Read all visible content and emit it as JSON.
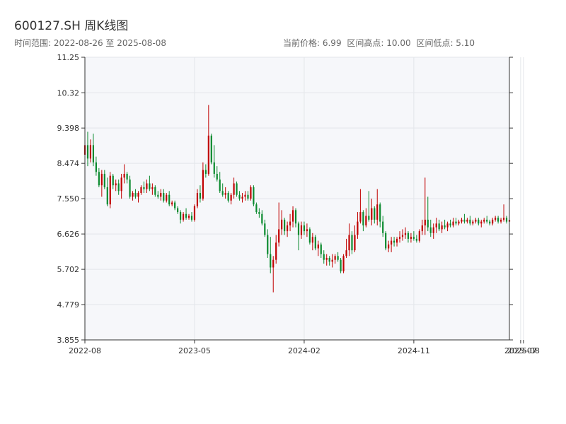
{
  "title": "600127.SH 周K线图",
  "time_range_label": "时间范围: 2022-08-26 至 2025-08-08",
  "stats": {
    "current_price": "当前价格: 6.99",
    "range_high": "区间高点: 10.00",
    "range_low": "区间低点: 5.10"
  },
  "colors": {
    "up": "#c00000",
    "down": "#0a8a2e",
    "plot_bg": "#f6f7fa",
    "grid": "#e3e6ea",
    "axis": "#333333"
  },
  "chart_data": {
    "type": "candlestick",
    "title": "600127.SH 周K线图",
    "ylim": [
      3.855,
      11.25
    ],
    "y_ticks": [
      "3.855",
      "4.779",
      "5.702",
      "6.626",
      "7.550",
      "8.474",
      "9.398",
      "10.32",
      "11.25"
    ],
    "x_tick_labels": [
      "2022-08",
      "2023-05",
      "2024-02",
      "2024-11",
      "2025-07",
      "2025-08"
    ],
    "x_tick_index": [
      0,
      39,
      78,
      117,
      155,
      156
    ],
    "grid": true,
    "series": [
      {
        "name": "600127.SH",
        "x": [
          "2022-08-26",
          "2022-09-02",
          "2022-09-09",
          "2022-09-16",
          "2022-09-23",
          "2022-09-30",
          "2022-10-07",
          "2022-10-14",
          "2022-10-21",
          "2022-10-28",
          "2022-11-04",
          "2022-11-11",
          "2022-11-18",
          "2022-11-25",
          "2022-12-02",
          "2022-12-09",
          "2022-12-16",
          "2022-12-23",
          "2022-12-30",
          "2023-01-06",
          "2023-01-13",
          "2023-01-20",
          "2023-01-27",
          "2023-02-03",
          "2023-02-10",
          "2023-02-17",
          "2023-02-24",
          "2023-03-03",
          "2023-03-10",
          "2023-03-17",
          "2023-03-24",
          "2023-03-31",
          "2023-04-07",
          "2023-04-14",
          "2023-04-21",
          "2023-04-28",
          "2023-05-05",
          "2023-05-12",
          "2023-05-19",
          "2023-05-26",
          "2023-06-02",
          "2023-06-09",
          "2023-06-16",
          "2023-06-23",
          "2023-06-30",
          "2023-07-07",
          "2023-07-14",
          "2023-07-21",
          "2023-07-28",
          "2023-08-04",
          "2023-08-11",
          "2023-08-18",
          "2023-08-25",
          "2023-09-01",
          "2023-09-08",
          "2023-09-15",
          "2023-09-22",
          "2023-09-29",
          "2023-10-06",
          "2023-10-13",
          "2023-10-20",
          "2023-10-27",
          "2023-11-03",
          "2023-11-10",
          "2023-11-17",
          "2023-11-24",
          "2023-12-01",
          "2023-12-08",
          "2023-12-15",
          "2023-12-22",
          "2023-12-29",
          "2024-01-05",
          "2024-01-12",
          "2024-01-19",
          "2024-01-26",
          "2024-02-02",
          "2024-02-09",
          "2024-02-16",
          "2024-02-23",
          "2024-03-01",
          "2024-03-08",
          "2024-03-15",
          "2024-03-22",
          "2024-03-29",
          "2024-04-05",
          "2024-04-12",
          "2024-04-19",
          "2024-04-26",
          "2024-05-03",
          "2024-05-10",
          "2024-05-17",
          "2024-05-24",
          "2024-05-31",
          "2024-06-07",
          "2024-06-14",
          "2024-06-21",
          "2024-06-28",
          "2024-07-05",
          "2024-07-12",
          "2024-07-19",
          "2024-07-26",
          "2024-08-02",
          "2024-08-09",
          "2024-08-16",
          "2024-08-23",
          "2024-08-30",
          "2024-09-06",
          "2024-09-13",
          "2024-09-20",
          "2024-09-27",
          "2024-10-04",
          "2024-10-11",
          "2024-10-18",
          "2024-10-25",
          "2024-11-01",
          "2024-11-08",
          "2024-11-15",
          "2024-11-22",
          "2024-11-29",
          "2024-12-06",
          "2024-12-13",
          "2024-12-20",
          "2024-12-27",
          "2025-01-03",
          "2025-01-10",
          "2025-01-17",
          "2025-01-24",
          "2025-01-31",
          "2025-02-07",
          "2025-02-14",
          "2025-02-21",
          "2025-02-28",
          "2025-03-07",
          "2025-03-14",
          "2025-03-21",
          "2025-03-28",
          "2025-04-04",
          "2025-04-11",
          "2025-04-18",
          "2025-04-25",
          "2025-05-02",
          "2025-05-09",
          "2025-05-16",
          "2025-05-23",
          "2025-05-30",
          "2025-06-06",
          "2025-06-13",
          "2025-06-20",
          "2025-06-27",
          "2025-07-04",
          "2025-07-11",
          "2025-07-18",
          "2025-07-25",
          "2025-08-01",
          "2025-08-08"
        ],
        "ohlc": [
          [
            8.7,
            9.05,
            8.6,
            8.95
          ],
          [
            8.95,
            9.3,
            8.4,
            8.6
          ],
          [
            8.6,
            9.1,
            8.5,
            8.95
          ],
          [
            8.95,
            9.25,
            8.4,
            8.5
          ],
          [
            8.5,
            8.65,
            8.15,
            8.25
          ],
          [
            8.25,
            8.35,
            7.85,
            7.9
          ],
          [
            7.9,
            8.3,
            7.6,
            8.2
          ],
          [
            8.2,
            8.3,
            7.8,
            7.85
          ],
          [
            7.85,
            8.1,
            7.35,
            7.4
          ],
          [
            7.4,
            8.25,
            7.3,
            8.15
          ],
          [
            8.15,
            8.2,
            7.8,
            7.9
          ],
          [
            7.9,
            8.05,
            7.75,
            7.95
          ],
          [
            7.95,
            8.05,
            7.65,
            7.75
          ],
          [
            7.75,
            8.2,
            7.55,
            8.1
          ],
          [
            8.1,
            8.45,
            7.95,
            8.2
          ],
          [
            8.2,
            8.25,
            7.95,
            8.05
          ],
          [
            8.05,
            8.15,
            7.55,
            7.6
          ],
          [
            7.6,
            7.75,
            7.5,
            7.7
          ],
          [
            7.7,
            7.8,
            7.55,
            7.6
          ],
          [
            7.6,
            7.75,
            7.45,
            7.7
          ],
          [
            7.7,
            7.9,
            7.65,
            7.85
          ],
          [
            7.85,
            8.0,
            7.7,
            7.8
          ],
          [
            7.8,
            8.05,
            7.7,
            7.95
          ],
          [
            7.95,
            8.15,
            7.75,
            7.8
          ],
          [
            7.8,
            7.95,
            7.65,
            7.85
          ],
          [
            7.85,
            7.9,
            7.6,
            7.65
          ],
          [
            7.65,
            7.75,
            7.55,
            7.6
          ],
          [
            7.6,
            7.8,
            7.5,
            7.7
          ],
          [
            7.7,
            7.8,
            7.45,
            7.5
          ],
          [
            7.5,
            7.7,
            7.45,
            7.65
          ],
          [
            7.65,
            7.75,
            7.35,
            7.4
          ],
          [
            7.4,
            7.5,
            7.35,
            7.45
          ],
          [
            7.45,
            7.5,
            7.25,
            7.3
          ],
          [
            7.3,
            7.35,
            7.15,
            7.2
          ],
          [
            7.2,
            7.25,
            6.9,
            7.0
          ],
          [
            7.0,
            7.2,
            6.95,
            7.15
          ],
          [
            7.15,
            7.3,
            7.0,
            7.05
          ],
          [
            7.05,
            7.15,
            7.0,
            7.1
          ],
          [
            7.1,
            7.2,
            6.95,
            7.0
          ],
          [
            7.0,
            7.4,
            6.95,
            7.35
          ],
          [
            7.35,
            7.8,
            7.3,
            7.7
          ],
          [
            7.7,
            7.9,
            7.45,
            7.55
          ],
          [
            7.55,
            8.5,
            7.5,
            8.3
          ],
          [
            8.3,
            8.45,
            8.1,
            8.2
          ],
          [
            8.2,
            10.0,
            8.15,
            9.2
          ],
          [
            9.2,
            9.25,
            8.45,
            8.5
          ],
          [
            8.5,
            8.95,
            8.1,
            8.2
          ],
          [
            8.2,
            8.4,
            8.0,
            8.05
          ],
          [
            8.05,
            8.25,
            7.7,
            7.75
          ],
          [
            7.75,
            7.95,
            7.6,
            7.65
          ],
          [
            7.65,
            7.85,
            7.55,
            7.7
          ],
          [
            7.7,
            7.75,
            7.45,
            7.5
          ],
          [
            7.5,
            7.7,
            7.4,
            7.65
          ],
          [
            7.65,
            8.1,
            7.55,
            7.95
          ],
          [
            7.95,
            8.0,
            7.6,
            7.65
          ],
          [
            7.65,
            7.75,
            7.5,
            7.55
          ],
          [
            7.55,
            7.7,
            7.45,
            7.6
          ],
          [
            7.6,
            7.75,
            7.5,
            7.65
          ],
          [
            7.65,
            7.75,
            7.5,
            7.55
          ],
          [
            7.55,
            7.9,
            7.5,
            7.85
          ],
          [
            7.85,
            7.9,
            7.35,
            7.4
          ],
          [
            7.4,
            7.45,
            7.15,
            7.2
          ],
          [
            7.2,
            7.3,
            7.05,
            7.15
          ],
          [
            7.15,
            7.25,
            6.85,
            6.9
          ],
          [
            6.9,
            7.0,
            6.55,
            6.6
          ],
          [
            6.6,
            6.75,
            6.0,
            6.1
          ],
          [
            6.1,
            6.55,
            5.6,
            5.75
          ],
          [
            5.75,
            6.05,
            5.1,
            5.95
          ],
          [
            5.95,
            6.6,
            5.85,
            6.4
          ],
          [
            6.4,
            7.45,
            6.3,
            6.75
          ],
          [
            6.75,
            7.25,
            6.6,
            7.0
          ],
          [
            7.0,
            7.05,
            6.6,
            6.7
          ],
          [
            6.7,
            6.95,
            6.55,
            6.85
          ],
          [
            6.85,
            7.15,
            6.7,
            6.95
          ],
          [
            6.95,
            7.35,
            6.8,
            7.25
          ],
          [
            7.25,
            7.3,
            6.8,
            6.9
          ],
          [
            6.9,
            6.95,
            6.2,
            6.6
          ],
          [
            6.6,
            6.95,
            6.5,
            6.85
          ],
          [
            6.85,
            6.95,
            6.6,
            6.7
          ],
          [
            6.7,
            6.9,
            6.55,
            6.75
          ],
          [
            6.75,
            6.8,
            6.35,
            6.4
          ],
          [
            6.4,
            6.65,
            6.2,
            6.55
          ],
          [
            6.55,
            6.6,
            6.2,
            6.25
          ],
          [
            6.25,
            6.45,
            6.05,
            6.35
          ],
          [
            6.35,
            6.4,
            6.0,
            6.1
          ],
          [
            6.1,
            6.2,
            5.85,
            5.95
          ],
          [
            5.95,
            6.1,
            5.8,
            6.0
          ],
          [
            6.0,
            6.05,
            5.8,
            5.9
          ],
          [
            5.9,
            6.1,
            5.75,
            5.95
          ],
          [
            5.95,
            6.1,
            5.85,
            6.05
          ],
          [
            6.05,
            6.15,
            5.9,
            5.95
          ],
          [
            5.95,
            6.0,
            5.6,
            5.65
          ],
          [
            5.65,
            6.1,
            5.6,
            6.05
          ],
          [
            6.05,
            6.5,
            6.0,
            6.2
          ],
          [
            6.2,
            6.9,
            6.05,
            6.6
          ],
          [
            6.6,
            6.7,
            6.1,
            6.2
          ],
          [
            6.2,
            6.85,
            6.15,
            6.6
          ],
          [
            6.6,
            7.2,
            6.5,
            6.95
          ],
          [
            6.95,
            7.8,
            6.9,
            7.2
          ],
          [
            7.2,
            7.25,
            6.7,
            6.85
          ],
          [
            6.85,
            7.3,
            6.8,
            7.1
          ],
          [
            7.1,
            7.75,
            6.95,
            7.0
          ],
          [
            7.0,
            7.55,
            6.85,
            7.3
          ],
          [
            7.3,
            7.35,
            6.9,
            7.0
          ],
          [
            7.0,
            7.8,
            6.85,
            7.4
          ],
          [
            7.4,
            7.45,
            6.8,
            6.95
          ],
          [
            6.95,
            7.1,
            6.55,
            6.65
          ],
          [
            6.65,
            6.7,
            6.2,
            6.25
          ],
          [
            6.25,
            6.45,
            6.15,
            6.35
          ],
          [
            6.35,
            6.55,
            6.15,
            6.45
          ],
          [
            6.45,
            6.55,
            6.3,
            6.4
          ],
          [
            6.4,
            6.55,
            6.3,
            6.5
          ],
          [
            6.5,
            6.7,
            6.4,
            6.55
          ],
          [
            6.55,
            6.75,
            6.45,
            6.6
          ],
          [
            6.6,
            6.8,
            6.5,
            6.65
          ],
          [
            6.65,
            6.7,
            6.4,
            6.5
          ],
          [
            6.5,
            6.65,
            6.4,
            6.55
          ],
          [
            6.55,
            6.7,
            6.45,
            6.5
          ],
          [
            6.5,
            6.6,
            6.4,
            6.45
          ],
          [
            6.45,
            6.75,
            6.4,
            6.7
          ],
          [
            6.7,
            7.0,
            6.6,
            6.85
          ],
          [
            6.85,
            8.1,
            6.6,
            7.0
          ],
          [
            7.0,
            7.6,
            6.7,
            6.8
          ],
          [
            6.8,
            7.0,
            6.55,
            6.65
          ],
          [
            6.65,
            6.9,
            6.5,
            6.8
          ],
          [
            6.8,
            7.05,
            6.65,
            6.9
          ],
          [
            6.9,
            7.0,
            6.7,
            6.75
          ],
          [
            6.75,
            6.95,
            6.65,
            6.85
          ],
          [
            6.85,
            7.0,
            6.75,
            6.8
          ],
          [
            6.8,
            6.95,
            6.7,
            6.9
          ],
          [
            6.9,
            7.0,
            6.8,
            6.85
          ],
          [
            6.85,
            7.05,
            6.8,
            6.95
          ],
          [
            6.95,
            7.05,
            6.85,
            6.9
          ],
          [
            6.9,
            7.0,
            6.85,
            6.95
          ],
          [
            6.95,
            7.05,
            6.9,
            7.0
          ],
          [
            7.0,
            7.15,
            6.9,
            6.95
          ],
          [
            6.95,
            7.05,
            6.9,
            7.0
          ],
          [
            7.0,
            7.1,
            6.85,
            6.9
          ],
          [
            6.9,
            7.0,
            6.85,
            6.95
          ],
          [
            6.95,
            7.05,
            6.9,
            7.0
          ],
          [
            7.0,
            7.05,
            6.85,
            6.9
          ],
          [
            6.9,
            7.0,
            6.8,
            6.95
          ],
          [
            6.95,
            7.05,
            6.9,
            7.0
          ],
          [
            7.0,
            7.1,
            6.9,
            6.95
          ],
          [
            6.95,
            7.0,
            6.85,
            6.9
          ],
          [
            6.9,
            7.05,
            6.85,
            7.0
          ],
          [
            7.0,
            7.1,
            6.95,
            7.05
          ],
          [
            7.05,
            7.1,
            6.9,
            6.95
          ],
          [
            6.95,
            7.05,
            6.9,
            7.0
          ],
          [
            7.0,
            7.4,
            6.95,
            7.05
          ],
          [
            7.05,
            7.1,
            6.9,
            6.95
          ],
          [
            6.95,
            7.05,
            6.85,
            6.99
          ]
        ]
      }
    ]
  }
}
